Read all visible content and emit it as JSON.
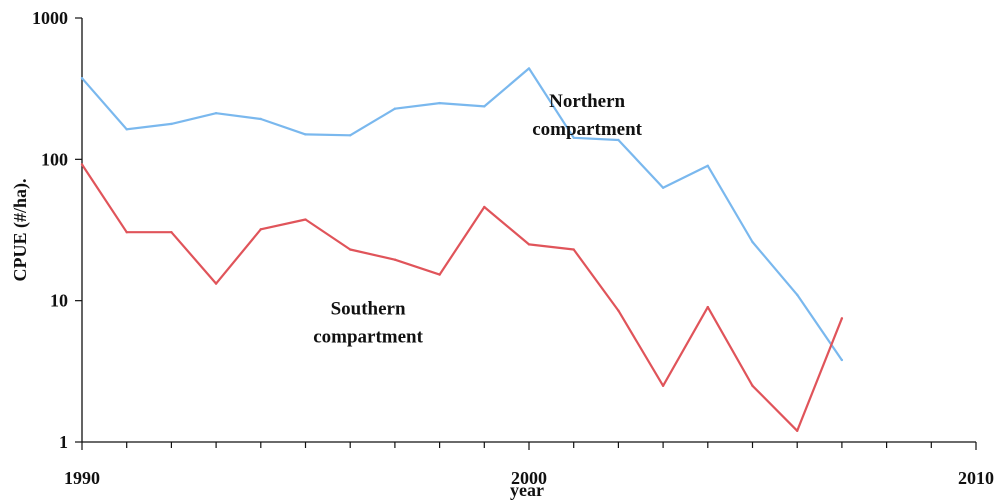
{
  "chart_data": {
    "type": "line",
    "title": "",
    "xlabel": "year",
    "ylabel": "CPUE (#/ha).",
    "xlim": [
      1990,
      2010
    ],
    "ylim": [
      1,
      1000
    ],
    "y_scale": "log",
    "grid": false,
    "x_ticks": [
      "1990",
      "2000",
      "2010"
    ],
    "y_ticks": [
      "1",
      "10",
      "100",
      "1000"
    ],
    "series": [
      {
        "color": "#7ab8ee",
        "x": [
          1990,
          1991,
          1992,
          1993,
          1994,
          1995,
          1996,
          1997,
          1998,
          1999,
          2000,
          2001,
          2002,
          2003,
          2004,
          2005,
          2006,
          2007
        ],
        "values": [
          375,
          163,
          178,
          212,
          193,
          150,
          148,
          228,
          250,
          237,
          440,
          142,
          137,
          63,
          90,
          26,
          11,
          3.8
        ]
      },
      {
        "color": "#e0545a",
        "x": [
          1990,
          1991,
          1992,
          1993,
          1994,
          1995,
          1996,
          1997,
          1998,
          1999,
          2000,
          2001,
          2002,
          2003,
          2004,
          2005,
          2006,
          2007
        ],
        "values": [
          92,
          30.5,
          30.5,
          13.2,
          32,
          37.5,
          23,
          19.5,
          15.3,
          46,
          25,
          23,
          8.5,
          2.5,
          9,
          2.5,
          1.2,
          7.5
        ]
      }
    ],
    "annotations": [
      {
        "line1": "Northern",
        "line2": "compartment",
        "x": 2001.3,
        "y": 220
      },
      {
        "line1": "Southern",
        "line2": "compartment",
        "x": 1996.4,
        "y": 7.5
      }
    ]
  }
}
